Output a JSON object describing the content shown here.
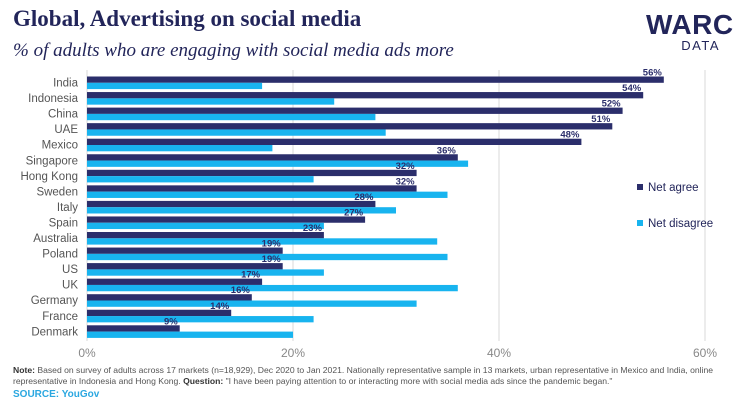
{
  "header": {
    "title": "Global, Advertising on social media",
    "subtitle": "% of adults who are engaging with social media ads more"
  },
  "logo": {
    "main": "WARC",
    "sub": "DATA"
  },
  "colors": {
    "net_agree": "#2b2e6b",
    "net_disagree": "#18b4ef",
    "text": "#22255a",
    "grid": "#d8d8d8"
  },
  "chart_data": {
    "type": "bar",
    "orientation": "horizontal",
    "categories": [
      "India",
      "Indonesia",
      "China",
      "UAE",
      "Mexico",
      "Singapore",
      "Hong Kong",
      "Sweden",
      "Italy",
      "Spain",
      "Australia",
      "Poland",
      "US",
      "UK",
      "Germany",
      "France",
      "Denmark"
    ],
    "series": [
      {
        "name": "Net agree",
        "values": [
          56,
          54,
          52,
          51,
          48,
          36,
          32,
          32,
          28,
          27,
          23,
          19,
          19,
          17,
          16,
          14,
          9
        ],
        "labels": [
          "56%",
          "54%",
          "52%",
          "51%",
          "48%",
          "36%",
          "32%",
          "32%",
          "28%",
          "27%",
          "23%",
          "19%",
          "19%",
          "17%",
          "16%",
          "14%",
          "9%"
        ]
      },
      {
        "name": "Net disagree",
        "values": [
          17,
          24,
          28,
          29,
          18,
          37,
          22,
          35,
          30,
          23,
          34,
          35,
          23,
          36,
          32,
          22,
          20
        ]
      }
    ],
    "xlim": [
      0,
      60
    ],
    "xticks": [
      "0%",
      "20%",
      "40%",
      "60%"
    ],
    "xlabel": "",
    "ylabel": "",
    "legend_position": "right",
    "grid": true
  },
  "footer": {
    "note_label": "Note:",
    "note_text": " Based on survey of adults across 17 markets (n=18,929), Dec 2020 to Jan 2021. Nationally representative sample in 13 markets, urban representative in Mexico and India, online representative in Indonesia and Hong Kong. ",
    "question_label": "Question:",
    "question_text": " \"I have been paying attention to or interacting more with social media ads since the pandemic began.\"",
    "source": "SOURCE: YouGov"
  }
}
